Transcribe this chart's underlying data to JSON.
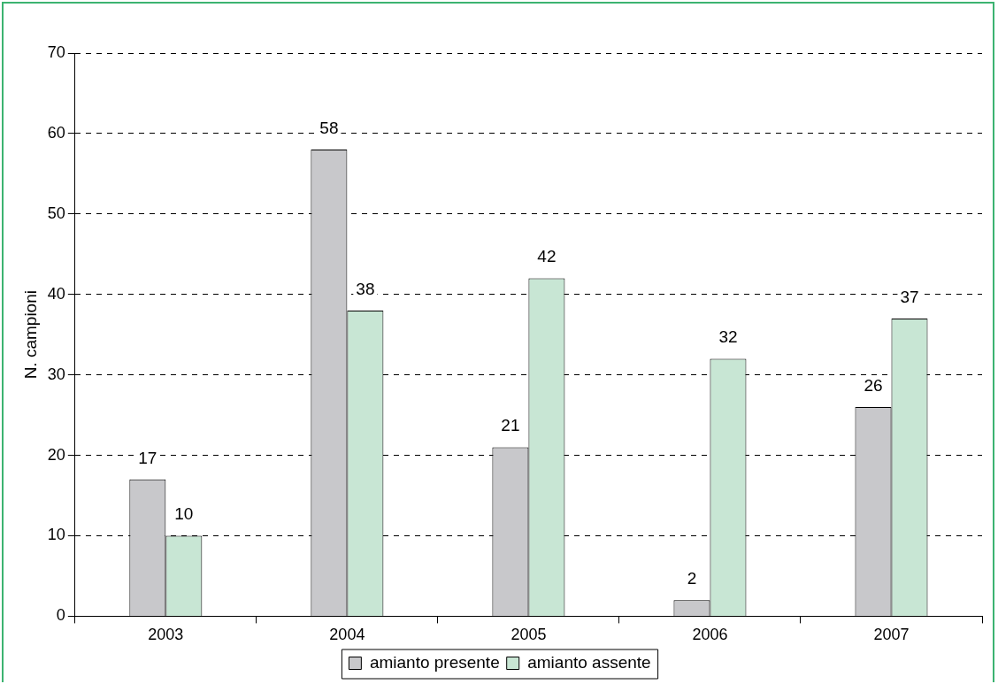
{
  "chart_data": {
    "type": "bar",
    "ylabel": "N. campioni",
    "categories": [
      "2003",
      "2004",
      "2005",
      "2006",
      "2007"
    ],
    "series": [
      {
        "name": "amianto presente",
        "color": "#c8c8cb",
        "values": [
          17,
          58,
          21,
          2,
          26
        ]
      },
      {
        "name": "amianto assente",
        "color": "#c8e6d4",
        "values": [
          10,
          38,
          42,
          32,
          37
        ]
      }
    ],
    "ylim": [
      0,
      70
    ],
    "yticks": [
      0,
      10,
      20,
      30,
      40,
      50,
      60,
      70
    ],
    "grid": "y",
    "line_style": "dashed",
    "legend": "bottom",
    "data_labels": true
  }
}
